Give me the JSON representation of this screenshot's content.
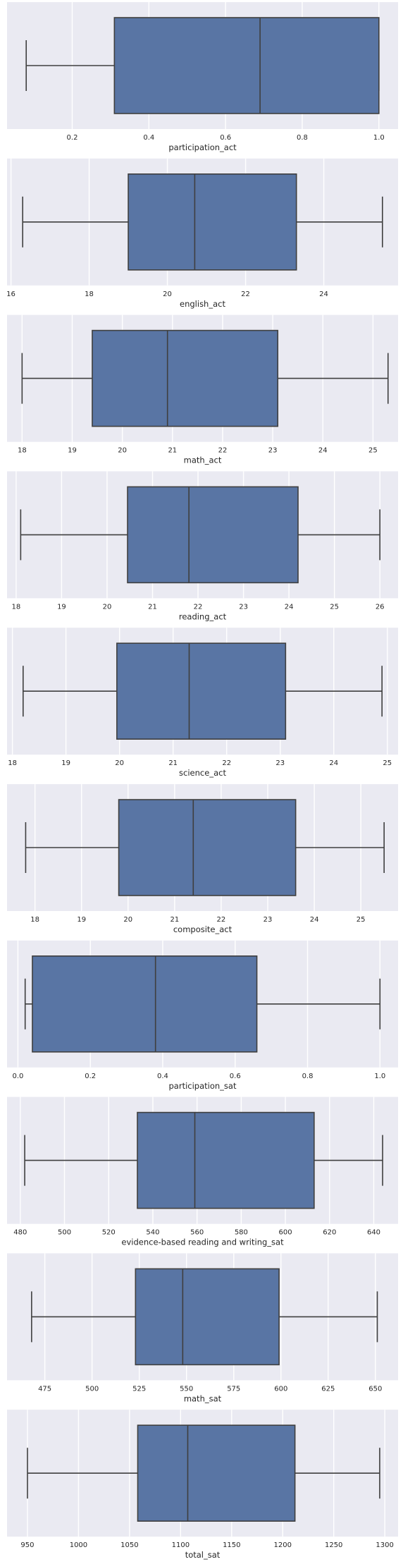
{
  "colors": {
    "panel_background": "#eaeaf2",
    "grid": "#ffffff",
    "box_fill": "#5975a4",
    "box_line": "#3f3f3f",
    "text": "#262626"
  },
  "chart_data": [
    {
      "type": "boxplot",
      "xlabel": "participation_act",
      "grid": true,
      "xlim": [
        0.03,
        1.05
      ],
      "ticks": [
        0.2,
        0.4,
        0.6,
        0.8,
        1.0
      ],
      "tick_labels": [
        "0.2",
        "0.4",
        "0.6",
        "0.8",
        "1.0"
      ],
      "whisker_low": 0.08,
      "q1": 0.31,
      "median": 0.69,
      "q3": 1.0,
      "whisker_high": 1.0
    },
    {
      "type": "boxplot",
      "xlabel": "english_act",
      "grid": true,
      "xlim": [
        15.9,
        25.9
      ],
      "ticks": [
        16,
        18,
        20,
        22,
        24
      ],
      "tick_labels": [
        "16",
        "18",
        "20",
        "22",
        "24"
      ],
      "whisker_low": 16.3,
      "q1": 19.0,
      "median": 20.7,
      "q3": 23.3,
      "whisker_high": 25.5
    },
    {
      "type": "boxplot",
      "xlabel": "math_act",
      "grid": true,
      "xlim": [
        17.7,
        25.5
      ],
      "ticks": [
        18,
        19,
        20,
        21,
        22,
        23,
        24,
        25
      ],
      "tick_labels": [
        "18",
        "19",
        "20",
        "21",
        "22",
        "23",
        "24",
        "25"
      ],
      "whisker_low": 18.0,
      "q1": 19.4,
      "median": 20.9,
      "q3": 23.1,
      "whisker_high": 25.3
    },
    {
      "type": "boxplot",
      "xlabel": "reading_act",
      "grid": true,
      "xlim": [
        17.8,
        26.4
      ],
      "ticks": [
        18,
        19,
        20,
        21,
        22,
        23,
        24,
        25,
        26
      ],
      "tick_labels": [
        "18",
        "19",
        "20",
        "21",
        "22",
        "23",
        "24",
        "25",
        "26"
      ],
      "whisker_low": 18.1,
      "q1": 20.45,
      "median": 21.8,
      "q3": 24.2,
      "whisker_high": 26.0
    },
    {
      "type": "boxplot",
      "xlabel": "science_act",
      "grid": true,
      "xlim": [
        17.9,
        25.2
      ],
      "ticks": [
        18,
        19,
        20,
        21,
        22,
        23,
        24,
        25
      ],
      "tick_labels": [
        "18",
        "19",
        "20",
        "21",
        "22",
        "23",
        "24",
        "25"
      ],
      "whisker_low": 18.2,
      "q1": 19.95,
      "median": 21.3,
      "q3": 23.1,
      "whisker_high": 24.9
    },
    {
      "type": "boxplot",
      "xlabel": "composite_act",
      "grid": true,
      "xlim": [
        17.4,
        25.8
      ],
      "ticks": [
        18,
        19,
        20,
        21,
        22,
        23,
        24,
        25
      ],
      "tick_labels": [
        "18",
        "19",
        "20",
        "21",
        "22",
        "23",
        "24",
        "25"
      ],
      "whisker_low": 17.8,
      "q1": 19.8,
      "median": 21.4,
      "q3": 23.6,
      "whisker_high": 25.5
    },
    {
      "type": "boxplot",
      "xlabel": "participation_sat",
      "grid": true,
      "xlim": [
        -0.03,
        1.05
      ],
      "ticks": [
        0.0,
        0.2,
        0.4,
        0.6,
        0.8,
        1.0
      ],
      "tick_labels": [
        "0.0",
        "0.2",
        "0.4",
        "0.6",
        "0.8",
        "1.0"
      ],
      "whisker_low": 0.02,
      "q1": 0.04,
      "median": 0.38,
      "q3": 0.66,
      "whisker_high": 1.0
    },
    {
      "type": "boxplot",
      "xlabel": "evidence-based reading and writing_sat",
      "grid": true,
      "xlim": [
        474,
        651
      ],
      "ticks": [
        480,
        500,
        520,
        540,
        560,
        580,
        600,
        620,
        640
      ],
      "tick_labels": [
        "480",
        "500",
        "520",
        "540",
        "560",
        "580",
        "600",
        "620",
        "640"
      ],
      "whisker_low": 482,
      "q1": 533,
      "median": 559,
      "q3": 613,
      "whisker_high": 644
    },
    {
      "type": "boxplot",
      "xlabel": "math_sat",
      "grid": true,
      "xlim": [
        455,
        662
      ],
      "ticks": [
        475,
        500,
        525,
        550,
        575,
        600,
        625,
        650
      ],
      "tick_labels": [
        "475",
        "500",
        "525",
        "550",
        "575",
        "600",
        "625",
        "650"
      ],
      "whisker_low": 468,
      "q1": 523,
      "median": 548,
      "q3": 599,
      "whisker_high": 651
    },
    {
      "type": "boxplot",
      "xlabel": "total_sat",
      "grid": true,
      "xlim": [
        930,
        1313
      ],
      "ticks": [
        950,
        1000,
        1050,
        1100,
        1150,
        1200,
        1250,
        1300
      ],
      "tick_labels": [
        "950",
        "1000",
        "1050",
        "1100",
        "1150",
        "1200",
        "1250",
        "1300"
      ],
      "whisker_low": 950,
      "q1": 1058,
      "median": 1107,
      "q3": 1212,
      "whisker_high": 1295
    }
  ]
}
